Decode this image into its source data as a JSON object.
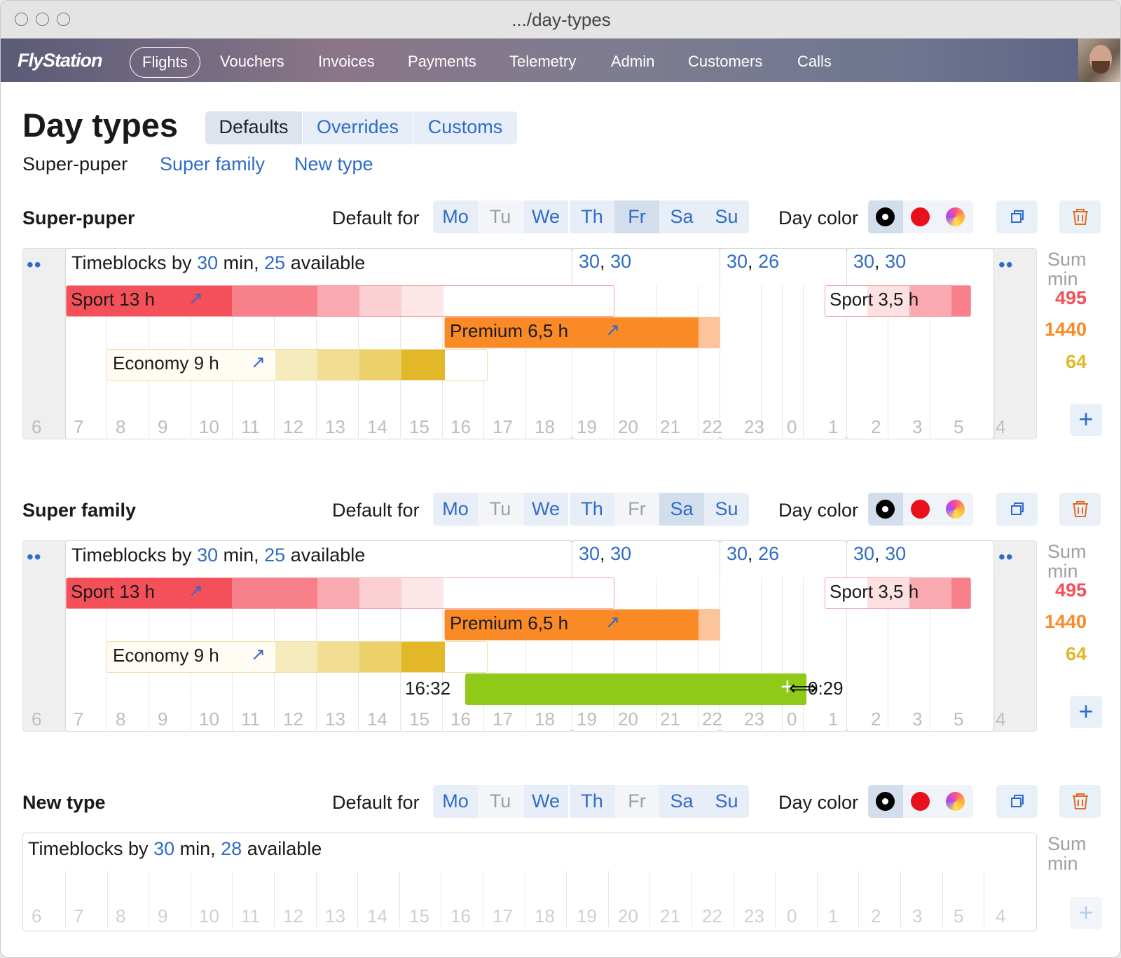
{
  "window": {
    "title": ".../day-types"
  },
  "nav": {
    "logo": "FlyStation",
    "items": [
      "Flights",
      "Vouchers",
      "Invoices",
      "Payments",
      "Telemetry",
      "Admin",
      "Customers",
      "Calls"
    ],
    "active": "Flights"
  },
  "page": {
    "title": "Day types",
    "segments": [
      "Defaults",
      "Overrides",
      "Customs"
    ],
    "selected_segment": "Defaults",
    "type_links": [
      "Super-puper",
      "Super family",
      "New type"
    ]
  },
  "labels": {
    "default_for": "Default for",
    "day_color": "Day color",
    "sum": "Sum",
    "min": "min",
    "timeblocks_by": "Timeblocks by",
    "min_comma": "min,",
    "available": "available",
    "dots": "••"
  },
  "days": [
    "Mo",
    "Tu",
    "We",
    "Th",
    "Fr",
    "Sa",
    "Su"
  ],
  "hours": [
    "6",
    "7",
    "8",
    "9",
    "10",
    "11",
    "12",
    "13",
    "14",
    "15",
    "16",
    "17",
    "18",
    "19",
    "20",
    "21",
    "22",
    "23",
    "0",
    "1",
    "2",
    "3",
    "5",
    "4"
  ],
  "colors": {
    "accent": "#2f6bc8",
    "sport": "#f4505a",
    "premium": "#f98a25",
    "economy": "#e2b728",
    "drag": "#8fca19",
    "day_black": "#000000",
    "day_red": "#e8111b"
  },
  "sections": [
    {
      "name": "Super-puper",
      "days_on": [
        "Mo",
        "We",
        "Th",
        "Fr",
        "Sa",
        "Su"
      ],
      "days_selected": [
        "Fr"
      ],
      "timeblocks": "30",
      "available": "25",
      "sublabels": [
        [
          "30",
          "30"
        ],
        [
          "30",
          "26"
        ],
        [
          "30",
          "30"
        ]
      ],
      "bars": {
        "sport": "Sport 13 h",
        "premium": "Premium 6,5 h",
        "economy": "Economy 9 h",
        "sport2": "Sport 3,5 h"
      },
      "sums": [
        "495",
        "1440",
        "64"
      ]
    },
    {
      "name": "Super family",
      "days_on": [
        "Mo",
        "We",
        "Th",
        "Sa",
        "Su"
      ],
      "days_selected": [
        "Sa"
      ],
      "timeblocks": "30",
      "available": "25",
      "sublabels": [
        [
          "30",
          "30"
        ],
        [
          "30",
          "26"
        ],
        [
          "30",
          "30"
        ]
      ],
      "bars": {
        "sport": "Sport 13 h",
        "premium": "Premium 6,5 h",
        "economy": "Economy 9 h",
        "sport2": "Sport 3,5 h"
      },
      "drag": {
        "start": "16:32",
        "end": "0:29"
      },
      "sums": [
        "495",
        "1440",
        "64"
      ]
    },
    {
      "name": "New type",
      "days_on": [
        "Mo",
        "We",
        "Th",
        "Sa",
        "Su"
      ],
      "days_selected": [],
      "timeblocks": "30",
      "available": "28"
    }
  ]
}
